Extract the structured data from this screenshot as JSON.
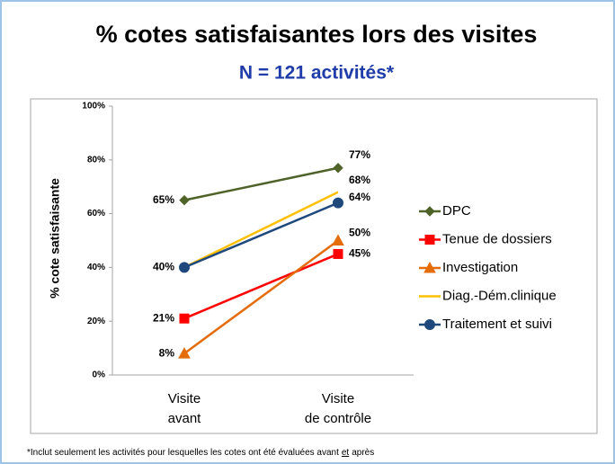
{
  "chart_data": {
    "type": "line",
    "title": "% cotes satisfaisantes lors des visites",
    "subtitle": "N = 121 activités*",
    "y_label": "% cote satisfaisante",
    "categories": [
      "Visite\navant",
      "Visite\nde contrôle"
    ],
    "ylim": [
      0,
      100
    ],
    "yticks": [
      {
        "value": 0,
        "label": "0%"
      },
      {
        "value": 20,
        "label": "20%"
      },
      {
        "value": 40,
        "label": "40%"
      },
      {
        "value": 60,
        "label": "60%"
      },
      {
        "value": 80,
        "label": "80%"
      },
      {
        "value": 100,
        "label": "100%"
      }
    ],
    "grid": false,
    "legend": "right",
    "series": [
      {
        "name": "DPC",
        "color": "#4f6228",
        "marker": "diamond",
        "values": [
          65,
          77
        ],
        "value_labels": [
          "65%",
          "77%"
        ]
      },
      {
        "name": "Tenue de dossiers",
        "color": "#ff0000",
        "marker": "square",
        "values": [
          21,
          45
        ],
        "value_labels": [
          "21%",
          "45%"
        ]
      },
      {
        "name": "Investigation",
        "color": "#e46c0a",
        "marker": "triangle",
        "values": [
          8,
          50
        ],
        "value_labels": [
          "8%",
          "50%"
        ]
      },
      {
        "name": "Diag.-Dém.clinique",
        "color": "#ffc000",
        "marker": null,
        "values": [
          40,
          68
        ],
        "value_labels": [
          null,
          "68%"
        ]
      },
      {
        "name": "Traitement et suivi",
        "color": "#1f497d",
        "marker": "circle",
        "values": [
          40,
          64
        ],
        "value_labels": [
          "40%",
          "64%"
        ]
      }
    ],
    "footnote": {
      "before": "*Inclut seulement les activités pour lesquelles les cotes ont été évaluées avant",
      "underlined": "et",
      "after": "après"
    }
  }
}
